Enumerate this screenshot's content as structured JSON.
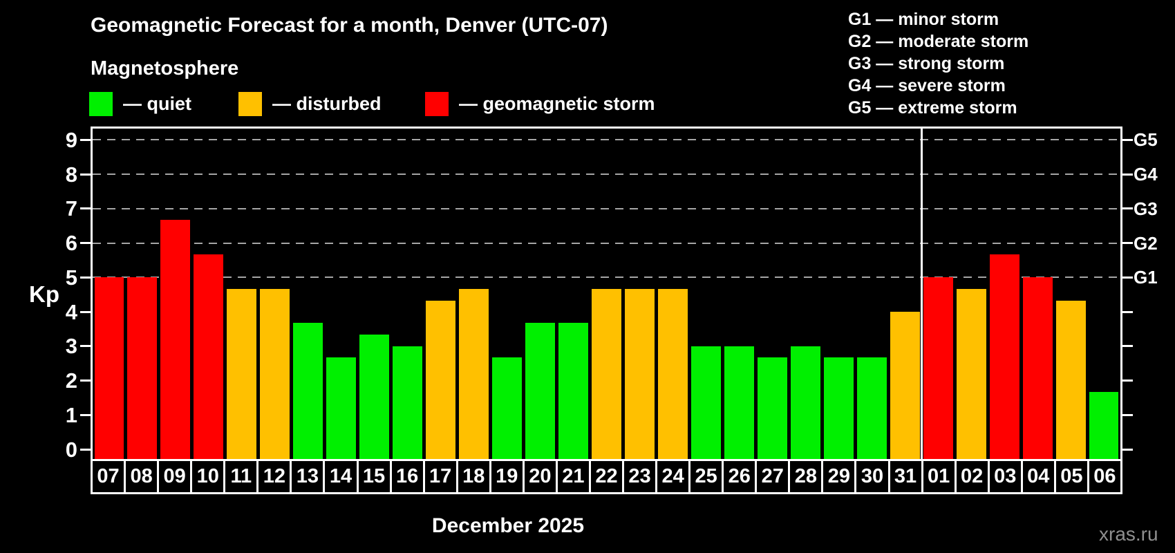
{
  "title": "Geomagnetic Forecast for a month, Denver (UTC-07)",
  "subtitle": "Magnetosphere",
  "colors": {
    "quiet": "#00f000",
    "disturbed": "#ffc000",
    "storm": "#ff0000",
    "grid": "#a6a6a6",
    "axis": "#ffffff",
    "watermark": "#8f8f8f"
  },
  "legend": [
    {
      "key": "quiet",
      "label": "— quiet"
    },
    {
      "key": "disturbed",
      "label": "— disturbed"
    },
    {
      "key": "storm",
      "label": "— geomagnetic storm"
    }
  ],
  "g_legend": [
    "G1 — minor storm",
    "G2 — moderate storm",
    "G3 — strong storm",
    "G4 — severe storm",
    "G5 — extreme storm"
  ],
  "axis": {
    "kp_label": "Kp",
    "y_ticks": [
      0,
      1,
      2,
      3,
      4,
      5,
      6,
      7,
      8,
      9
    ],
    "right_labels": {
      "5": "G1",
      "6": "G2",
      "7": "G3",
      "8": "G4",
      "9": "G5"
    }
  },
  "x_label": "December 2025",
  "watermark": "xras.ru",
  "chart_data": {
    "type": "bar",
    "ylabel": "Kp",
    "ylim": [
      0,
      9
    ],
    "grid_levels": [
      5,
      6,
      7,
      8,
      9
    ],
    "december_days": 25,
    "categories": [
      "07",
      "08",
      "09",
      "10",
      "11",
      "12",
      "13",
      "14",
      "15",
      "16",
      "17",
      "18",
      "19",
      "20",
      "21",
      "22",
      "23",
      "24",
      "25",
      "26",
      "27",
      "28",
      "29",
      "30",
      "31",
      "01",
      "02",
      "03",
      "04",
      "05",
      "06"
    ],
    "values": [
      5,
      5,
      6.67,
      5.67,
      4.67,
      4.67,
      3.67,
      2.67,
      3.33,
      3,
      4.33,
      4.67,
      2.67,
      3.67,
      3.67,
      4.67,
      4.67,
      4.67,
      3,
      3,
      2.67,
      3,
      2.67,
      2.67,
      4,
      5,
      4.67,
      5.67,
      5,
      4.33,
      1.67
    ],
    "statuses": [
      "storm",
      "storm",
      "storm",
      "storm",
      "disturbed",
      "disturbed",
      "quiet",
      "quiet",
      "quiet",
      "quiet",
      "disturbed",
      "disturbed",
      "quiet",
      "quiet",
      "quiet",
      "disturbed",
      "disturbed",
      "disturbed",
      "quiet",
      "quiet",
      "quiet",
      "quiet",
      "quiet",
      "quiet",
      "disturbed",
      "storm",
      "disturbed",
      "storm",
      "storm",
      "disturbed",
      "quiet"
    ]
  }
}
